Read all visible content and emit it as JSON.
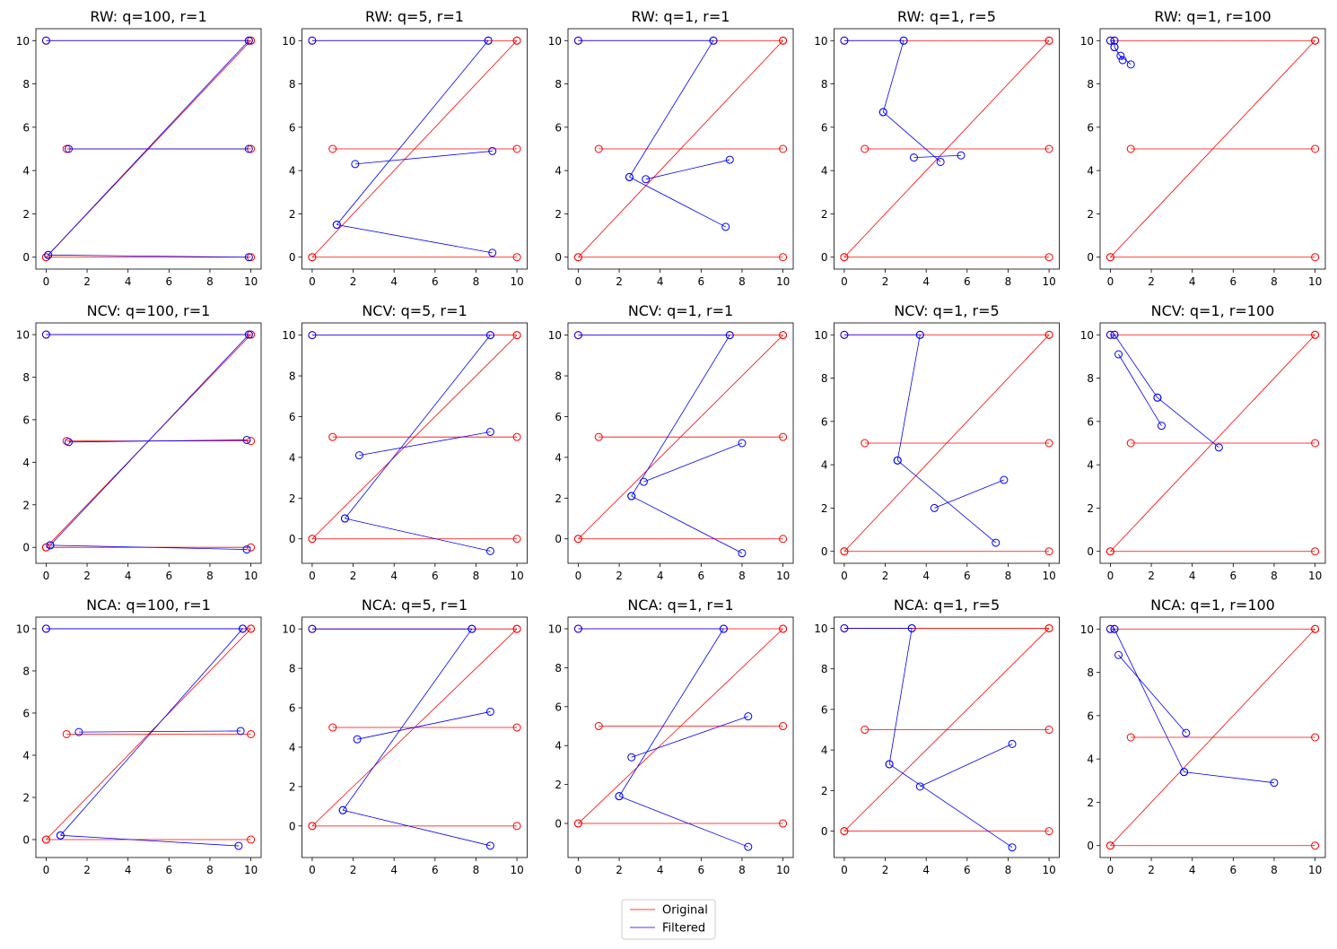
{
  "figure": {
    "legend": {
      "location": "bottom-center",
      "entries": [
        {
          "label": "Original",
          "color": "#ff0000"
        },
        {
          "label": "Filtered",
          "color": "#0000ff"
        }
      ]
    }
  },
  "chart_data": [
    {
      "type": "line",
      "title": "RW: q=100, r=1",
      "xlim": [
        -0.5,
        10.5
      ],
      "ylim": [
        -0.55,
        10.55
      ],
      "xticks": [
        0,
        2,
        4,
        6,
        8,
        10
      ],
      "yticks": [
        0,
        2,
        4,
        6,
        8,
        10
      ],
      "grid": false,
      "series": [
        {
          "name": "Original",
          "color": "#ff0000",
          "x": [
            0,
            10,
            0,
            10,
            1,
            10,
            0,
            10
          ],
          "y": [
            10,
            10,
            0,
            0,
            5,
            5,
            0,
            10
          ]
        },
        {
          "name": "Filtered",
          "color": "#0000ff",
          "x": [
            0,
            9.9,
            0.1,
            9.9,
            1.1,
            9.9,
            0.1,
            9.9
          ],
          "y": [
            10,
            10,
            0.1,
            0,
            5,
            5,
            0.1,
            10
          ]
        }
      ]
    },
    {
      "type": "line",
      "title": "RW: q=5, r=1",
      "xlim": [
        -0.5,
        10.5
      ],
      "ylim": [
        -0.55,
        10.55
      ],
      "xticks": [
        0,
        2,
        4,
        6,
        8,
        10
      ],
      "yticks": [
        0,
        2,
        4,
        6,
        8,
        10
      ],
      "grid": false,
      "series": [
        {
          "name": "Original",
          "color": "#ff0000",
          "x": [
            0,
            10,
            0,
            10,
            1,
            10,
            0,
            10
          ],
          "y": [
            10,
            10,
            0,
            0,
            5,
            5,
            0,
            10
          ]
        },
        {
          "name": "Filtered",
          "color": "#0000ff",
          "x": [
            0,
            8.6,
            1.2,
            8.8,
            2.1,
            8.8,
            1.2,
            8.6
          ],
          "y": [
            10,
            10,
            1.5,
            0.2,
            4.3,
            4.9,
            1.5,
            10
          ]
        }
      ]
    },
    {
      "type": "line",
      "title": "RW: q=1, r=1",
      "xlim": [
        -0.5,
        10.5
      ],
      "ylim": [
        -0.55,
        10.55
      ],
      "xticks": [
        0,
        2,
        4,
        6,
        8,
        10
      ],
      "yticks": [
        0,
        2,
        4,
        6,
        8,
        10
      ],
      "grid": false,
      "series": [
        {
          "name": "Original",
          "color": "#ff0000",
          "x": [
            0,
            10,
            0,
            10,
            1,
            10,
            0,
            10
          ],
          "y": [
            10,
            10,
            0,
            0,
            5,
            5,
            0,
            10
          ]
        },
        {
          "name": "Filtered",
          "color": "#0000ff",
          "x": [
            0,
            6.6,
            2.5,
            7.2,
            3.3,
            7.4,
            2.5,
            6.6
          ],
          "y": [
            10,
            10,
            3.7,
            1.4,
            3.6,
            4.5,
            3.7,
            10
          ]
        }
      ]
    },
    {
      "type": "line",
      "title": "RW: q=1, r=5",
      "xlim": [
        -0.5,
        10.5
      ],
      "ylim": [
        -0.55,
        10.55
      ],
      "xticks": [
        0,
        2,
        4,
        6,
        8,
        10
      ],
      "yticks": [
        0,
        2,
        4,
        6,
        8,
        10
      ],
      "grid": false,
      "series": [
        {
          "name": "Original",
          "color": "#ff0000",
          "x": [
            0,
            10,
            0,
            10,
            1,
            10,
            0,
            10
          ],
          "y": [
            10,
            10,
            0,
            0,
            5,
            5,
            0,
            10
          ]
        },
        {
          "name": "Filtered",
          "color": "#0000ff",
          "x": [
            0,
            2.9,
            1.9,
            4.7,
            3.4,
            5.7,
            1.9,
            2.9
          ],
          "y": [
            10,
            10,
            6.7,
            4.4,
            4.6,
            4.7,
            6.7,
            10
          ]
        }
      ]
    },
    {
      "type": "line",
      "title": "RW: q=1, r=100",
      "xlim": [
        -0.5,
        10.5
      ],
      "ylim": [
        -0.55,
        10.55
      ],
      "xticks": [
        0,
        2,
        4,
        6,
        8,
        10
      ],
      "yticks": [
        0,
        2,
        4,
        6,
        8,
        10
      ],
      "grid": false,
      "series": [
        {
          "name": "Original",
          "color": "#ff0000",
          "x": [
            0,
            10,
            0,
            10,
            1,
            10,
            0,
            10
          ],
          "y": [
            10,
            10,
            0,
            0,
            5,
            5,
            0,
            10
          ]
        },
        {
          "name": "Filtered",
          "color": "#0000ff",
          "x": [
            0,
            0.2,
            0.2,
            0.6,
            0.5,
            1.0,
            0.2,
            0.2
          ],
          "y": [
            10,
            10,
            9.7,
            9.1,
            9.3,
            8.9,
            9.7,
            10
          ]
        }
      ]
    },
    {
      "type": "line",
      "title": "NCV: q=100, r=1",
      "xlim": [
        -0.5,
        10.5
      ],
      "ylim": [
        -0.75,
        10.55
      ],
      "xticks": [
        0,
        2,
        4,
        6,
        8,
        10
      ],
      "yticks": [
        0,
        2,
        4,
        6,
        8,
        10
      ],
      "grid": false,
      "series": [
        {
          "name": "Original",
          "color": "#ff0000",
          "x": [
            0,
            10,
            0,
            10,
            1,
            10,
            0,
            10
          ],
          "y": [
            10,
            10,
            0,
            0,
            5,
            5,
            0,
            10
          ]
        },
        {
          "name": "Filtered",
          "color": "#0000ff",
          "x": [
            0,
            9.9,
            0.2,
            9.8,
            1.1,
            9.8,
            0.2,
            9.9
          ],
          "y": [
            10,
            10,
            0.1,
            -0.1,
            4.95,
            5.05,
            0.1,
            10
          ]
        }
      ]
    },
    {
      "type": "line",
      "title": "NCV: q=5, r=1",
      "xlim": [
        -0.5,
        10.5
      ],
      "ylim": [
        -1.2,
        10.6
      ],
      "xticks": [
        0,
        2,
        4,
        6,
        8,
        10
      ],
      "yticks": [
        0,
        2,
        4,
        6,
        8,
        10
      ],
      "grid": false,
      "series": [
        {
          "name": "Original",
          "color": "#ff0000",
          "x": [
            0,
            10,
            0,
            10,
            1,
            10,
            0,
            10
          ],
          "y": [
            10,
            10,
            0,
            0,
            5,
            5,
            0,
            10
          ]
        },
        {
          "name": "Filtered",
          "color": "#0000ff",
          "x": [
            0,
            8.7,
            1.6,
            8.7,
            2.3,
            8.7,
            1.6,
            8.7
          ],
          "y": [
            10,
            10,
            1.0,
            -0.6,
            4.1,
            5.25,
            1.0,
            10
          ]
        }
      ]
    },
    {
      "type": "line",
      "title": "NCV: q=1, r=1",
      "xlim": [
        -0.5,
        10.5
      ],
      "ylim": [
        -1.2,
        10.6
      ],
      "xticks": [
        0,
        2,
        4,
        6,
        8,
        10
      ],
      "yticks": [
        0,
        2,
        4,
        6,
        8,
        10
      ],
      "grid": false,
      "series": [
        {
          "name": "Original",
          "color": "#ff0000",
          "x": [
            0,
            10,
            0,
            10,
            1,
            10,
            0,
            10
          ],
          "y": [
            10,
            10,
            0,
            0,
            5,
            5,
            0,
            10
          ]
        },
        {
          "name": "Filtered",
          "color": "#0000ff",
          "x": [
            0,
            7.4,
            2.6,
            8.0,
            3.2,
            8.0,
            2.6,
            7.4
          ],
          "y": [
            10,
            10,
            2.1,
            -0.7,
            2.8,
            4.7,
            2.1,
            10
          ]
        }
      ]
    },
    {
      "type": "line",
      "title": "NCV: q=1, r=5",
      "xlim": [
        -0.5,
        10.5
      ],
      "ylim": [
        -0.55,
        10.55
      ],
      "xticks": [
        0,
        2,
        4,
        6,
        8,
        10
      ],
      "yticks": [
        0,
        2,
        4,
        6,
        8,
        10
      ],
      "grid": false,
      "series": [
        {
          "name": "Original",
          "color": "#ff0000",
          "x": [
            0,
            10,
            0,
            10,
            1,
            10,
            0,
            10
          ],
          "y": [
            10,
            10,
            0,
            0,
            5,
            5,
            0,
            10
          ]
        },
        {
          "name": "Filtered",
          "color": "#0000ff",
          "x": [
            0,
            3.7,
            2.6,
            7.4,
            4.4,
            7.8,
            2.6,
            3.7
          ],
          "y": [
            10,
            10,
            4.2,
            0.4,
            2.0,
            3.3,
            4.2,
            10
          ]
        }
      ]
    },
    {
      "type": "line",
      "title": "NCV: q=1, r=100",
      "xlim": [
        -0.5,
        10.5
      ],
      "ylim": [
        -0.55,
        10.55
      ],
      "xticks": [
        0,
        2,
        4,
        6,
        8,
        10
      ],
      "yticks": [
        0,
        2,
        4,
        6,
        8,
        10
      ],
      "grid": false,
      "series": [
        {
          "name": "Original",
          "color": "#ff0000",
          "x": [
            0,
            10,
            0,
            10,
            1,
            10,
            0,
            10
          ],
          "y": [
            10,
            10,
            0,
            0,
            5,
            5,
            0,
            10
          ]
        },
        {
          "name": "Filtered",
          "color": "#0000ff",
          "x": [
            0,
            0.2,
            2.3,
            5.3,
            0.4,
            2.5,
            2.3,
            0.2
          ],
          "y": [
            10,
            10,
            7.1,
            4.8,
            9.1,
            5.8,
            7.1,
            10
          ]
        }
      ]
    },
    {
      "type": "line",
      "title": "NCA: q=100, r=1",
      "xlim": [
        -0.5,
        10.5
      ],
      "ylim": [
        -0.85,
        10.55
      ],
      "xticks": [
        0,
        2,
        4,
        6,
        8,
        10
      ],
      "yticks": [
        0,
        2,
        4,
        6,
        8,
        10
      ],
      "grid": false,
      "series": [
        {
          "name": "Original",
          "color": "#ff0000",
          "x": [
            0,
            10,
            0,
            10,
            1,
            10,
            0,
            10
          ],
          "y": [
            10,
            10,
            0,
            0,
            5,
            5,
            0,
            10
          ]
        },
        {
          "name": "Filtered",
          "color": "#0000ff",
          "x": [
            0,
            9.6,
            0.7,
            9.4,
            1.6,
            9.5,
            0.7,
            9.6
          ],
          "y": [
            10,
            10,
            0.2,
            -0.3,
            5.1,
            5.15,
            0.2,
            10
          ]
        }
      ]
    },
    {
      "type": "line",
      "title": "NCA: q=5, r=1",
      "xlim": [
        -0.5,
        10.5
      ],
      "ylim": [
        -1.6,
        10.6
      ],
      "xticks": [
        0,
        2,
        4,
        6,
        8,
        10
      ],
      "yticks": [
        0,
        2,
        4,
        6,
        8,
        10
      ],
      "grid": false,
      "series": [
        {
          "name": "Original",
          "color": "#ff0000",
          "x": [
            0,
            10,
            0,
            10,
            1,
            10,
            0,
            10
          ],
          "y": [
            10,
            10,
            0,
            0,
            5,
            5,
            0,
            10
          ]
        },
        {
          "name": "Filtered",
          "color": "#0000ff",
          "x": [
            0,
            7.8,
            1.5,
            8.7,
            2.2,
            8.7,
            1.5,
            7.8
          ],
          "y": [
            10,
            10,
            0.8,
            -1.0,
            4.4,
            5.8,
            0.8,
            10
          ]
        }
      ]
    },
    {
      "type": "line",
      "title": "NCA: q=1, r=1",
      "xlim": [
        -0.5,
        10.5
      ],
      "ylim": [
        -1.75,
        10.6
      ],
      "xticks": [
        0,
        2,
        4,
        6,
        8,
        10
      ],
      "yticks": [
        0,
        2,
        4,
        6,
        8,
        10
      ],
      "grid": false,
      "series": [
        {
          "name": "Original",
          "color": "#ff0000",
          "x": [
            0,
            10,
            0,
            10,
            1,
            10,
            0,
            10
          ],
          "y": [
            10,
            10,
            0,
            0,
            5,
            5,
            0,
            10
          ]
        },
        {
          "name": "Filtered",
          "color": "#0000ff",
          "x": [
            0,
            7.1,
            2.0,
            8.3,
            2.6,
            8.3,
            2.0,
            7.1
          ],
          "y": [
            10,
            10,
            1.4,
            -1.2,
            3.4,
            5.5,
            1.4,
            10
          ]
        }
      ]
    },
    {
      "type": "line",
      "title": "NCA: q=1, r=5",
      "xlim": [
        -0.5,
        10.5
      ],
      "ylim": [
        -1.3,
        10.55
      ],
      "xticks": [
        0,
        2,
        4,
        6,
        8,
        10
      ],
      "yticks": [
        0,
        2,
        4,
        6,
        8,
        10
      ],
      "grid": false,
      "series": [
        {
          "name": "Original",
          "color": "#ff0000",
          "x": [
            0,
            10,
            0,
            10,
            1,
            10,
            0,
            10
          ],
          "y": [
            10,
            10,
            0,
            0,
            5,
            5,
            0,
            10
          ]
        },
        {
          "name": "Filtered",
          "color": "#0000ff",
          "x": [
            0,
            3.3,
            2.2,
            8.2,
            3.7,
            8.2,
            2.2,
            3.3
          ],
          "y": [
            10,
            10,
            3.3,
            -0.8,
            2.2,
            4.3,
            3.3,
            10
          ]
        }
      ]
    },
    {
      "type": "line",
      "title": "NCA: q=1, r=100",
      "xlim": [
        -0.5,
        10.5
      ],
      "ylim": [
        -0.55,
        10.55
      ],
      "xticks": [
        0,
        2,
        4,
        6,
        8,
        10
      ],
      "yticks": [
        0,
        2,
        4,
        6,
        8,
        10
      ],
      "grid": false,
      "series": [
        {
          "name": "Original",
          "color": "#ff0000",
          "x": [
            0,
            10,
            0,
            10,
            1,
            10,
            0,
            10
          ],
          "y": [
            10,
            10,
            0,
            0,
            5,
            5,
            0,
            10
          ]
        },
        {
          "name": "Filtered",
          "color": "#0000ff",
          "x": [
            0,
            0.2,
            3.6,
            8.0,
            0.4,
            3.7,
            3.6,
            0.2
          ],
          "y": [
            10,
            10,
            3.4,
            2.9,
            8.8,
            5.2,
            3.4,
            10
          ]
        }
      ]
    }
  ]
}
